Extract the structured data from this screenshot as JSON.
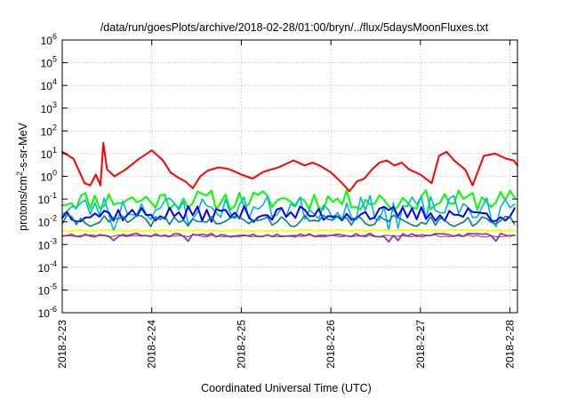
{
  "chart_data": {
    "type": "line",
    "title": "/data/run/goesPlots/archive/2018-02-28/01:00/bryn/../flux/5daysMoonFluxes.txt",
    "xlabel": "Coordinated Universal Time (UTC)",
    "ylabel": {
      "prefix": "protons/cm",
      "sup": "2",
      "suffix": "-s-sr-MeV"
    },
    "xlim": [
      "2018-2-23",
      "2018-2-28 02:00"
    ],
    "ylim": [
      1e-06,
      1000000.0
    ],
    "yscale": "log",
    "grid": true,
    "x_ticks": [
      "2018-2-23",
      "2018-2-24",
      "2018-2-25",
      "2018-2-26",
      "2018-2-27",
      "2018-2-28"
    ],
    "y_ticks": [
      {
        "value": 1e-06,
        "base": "10",
        "exp": "-6"
      },
      {
        "value": 1e-05,
        "base": "10",
        "exp": "-5"
      },
      {
        "value": 0.0001,
        "base": "10",
        "exp": "-4"
      },
      {
        "value": 0.001,
        "base": "10",
        "exp": "-3"
      },
      {
        "value": 0.01,
        "base": "10",
        "exp": "-2"
      },
      {
        "value": 0.1,
        "base": "10",
        "exp": "-1"
      },
      {
        "value": 1.0,
        "base": "10",
        "exp": "0"
      },
      {
        "value": 10.0,
        "base": "10",
        "exp": "1"
      },
      {
        "value": 100.0,
        "base": "10",
        "exp": "2"
      },
      {
        "value": 1000.0,
        "base": "10",
        "exp": "3"
      },
      {
        "value": 10000.0,
        "base": "10",
        "exp": "4"
      },
      {
        "value": 100000.0,
        "base": "10",
        "exp": "5"
      },
      {
        "value": 1000000.0,
        "base": "10",
        "exp": "6"
      }
    ],
    "series": [
      {
        "color": "#ff0000",
        "width": 2.0,
        "x": [
          "2018-2-23 00:00",
          "2018-2-23 03:00",
          "2018-2-23 06:00",
          "2018-2-23 07:30",
          "2018-2-23 09:00",
          "2018-2-23 10:15",
          "2018-2-23 11:00",
          "2018-2-23 12:00",
          "2018-2-23 14:00",
          "2018-2-23 17:00",
          "2018-2-23 20:00",
          "2018-2-24 00:00",
          "2018-2-24 03:00",
          "2018-2-24 05:00",
          "2018-2-24 07:00",
          "2018-2-24 09:00",
          "2018-2-24 11:00",
          "2018-2-24 13:00",
          "2018-2-24 15:00",
          "2018-2-24 18:00",
          "2018-2-24 21:00",
          "2018-2-25 00:00",
          "2018-2-25 03:00",
          "2018-2-25 06:00",
          "2018-2-25 10:00",
          "2018-2-25 14:00",
          "2018-2-25 17:00",
          "2018-2-25 19:00",
          "2018-2-25 21:00",
          "2018-2-26 00:00",
          "2018-2-26 03:00",
          "2018-2-26 05:00",
          "2018-2-26 07:00",
          "2018-2-26 09:00",
          "2018-2-26 11:00",
          "2018-2-26 13:00",
          "2018-2-26 15:00",
          "2018-2-26 17:00",
          "2018-2-26 19:00",
          "2018-2-26 21:00",
          "2018-2-27 00:00",
          "2018-2-27 03:00",
          "2018-2-27 05:00",
          "2018-2-27 07:00",
          "2018-2-27 09:00",
          "2018-2-27 12:00",
          "2018-2-27 14:00",
          "2018-2-27 17:00",
          "2018-2-27 20:00",
          "2018-2-27 23:00",
          "2018-2-28 01:00",
          "2018-2-28 02:00"
        ],
        "y": [
          12,
          6,
          0.5,
          0.4,
          1.2,
          0.4,
          30,
          2,
          1,
          2,
          5,
          14,
          5,
          1.5,
          0.9,
          0.6,
          0.3,
          1.0,
          1.8,
          2.5,
          2.0,
          1.2,
          0.8,
          1.6,
          2.5,
          5.0,
          3.0,
          4.0,
          3.0,
          1.5,
          0.5,
          0.22,
          0.6,
          0.8,
          2.0,
          4.0,
          5.0,
          3.0,
          4.0,
          2.0,
          1.2,
          0.5,
          8,
          12,
          5,
          2,
          0.4,
          8,
          10,
          6,
          5,
          3
        ]
      },
      {
        "color": "#00ff00",
        "width": 2.0,
        "base": 0.09,
        "amp": 0.45,
        "seed": 11,
        "spikes": [
          {
            "x": "2018-2-24 10:00",
            "y": 0.04
          },
          {
            "x": "2018-2-26 17:00",
            "y": 0.03
          }
        ]
      },
      {
        "color": "#00b4e8",
        "width": 1.6,
        "base": 0.04,
        "amp": 0.55,
        "seed": 23,
        "spikes": [
          {
            "x": "2018-2-23 14:00",
            "y": 0.004
          },
          {
            "x": "2018-2-24 10:00",
            "y": 0.008
          },
          {
            "x": "2018-2-26 16:00",
            "y": 0.004
          },
          {
            "x": "2018-2-26 18:00",
            "y": 0.005
          },
          {
            "x": "2018-2-27 20:00",
            "y": 0.006
          }
        ]
      },
      {
        "color": "#0000ff",
        "width": 2.0,
        "base": 0.022,
        "amp": 0.35,
        "seed": 37,
        "spikes": []
      },
      {
        "color": "#008080",
        "width": 1.6,
        "base": 0.011,
        "amp": 0.25,
        "seed": 41,
        "spikes": []
      },
      {
        "color": "#ffff00",
        "width": 2.0,
        "base": 0.0042,
        "amp": 0.04,
        "seed": 53,
        "spikes": []
      },
      {
        "color": "#9932cc",
        "width": 1.8,
        "base": 0.0026,
        "amp": 0.08,
        "seed": 67,
        "spikes": [
          {
            "x": "2018-2-23 14:00",
            "y": 0.0015
          },
          {
            "x": "2018-2-24 10:00",
            "y": 0.0014
          },
          {
            "x": "2018-2-26 16:00",
            "y": 0.0013
          },
          {
            "x": "2018-2-26 18:00",
            "y": 0.0015
          },
          {
            "x": "2018-2-27 20:00",
            "y": 0.0014
          }
        ]
      },
      {
        "color": "#8b4513",
        "width": 1.0,
        "base": 0.0024,
        "amp": 0.05,
        "seed": 71,
        "spikes": []
      }
    ]
  }
}
